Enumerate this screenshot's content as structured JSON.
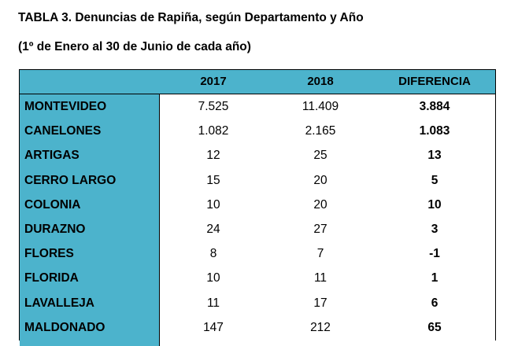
{
  "title": "TABLA 3. Denuncias de Rapiña, según Departamento y Año",
  "subtitle": "(1º de Enero al 30 de Junio de cada año)",
  "colors": {
    "header_bg": "#4cb3cc",
    "border": "#000000"
  },
  "table": {
    "headers": [
      "2017",
      "2018",
      "DIFERENCIA"
    ],
    "rows": [
      {
        "department": "MONTEVIDEO",
        "y2017": "7.525",
        "y2018": "11.409",
        "diff": "3.884"
      },
      {
        "department": "CANELONES",
        "y2017": "1.082",
        "y2018": "2.165",
        "diff": "1.083"
      },
      {
        "department": "ARTIGAS",
        "y2017": "12",
        "y2018": "25",
        "diff": "13"
      },
      {
        "department": "CERRO LARGO",
        "y2017": "15",
        "y2018": "20",
        "diff": "5"
      },
      {
        "department": "COLONIA",
        "y2017": "10",
        "y2018": "20",
        "diff": "10"
      },
      {
        "department": "DURAZNO",
        "y2017": "24",
        "y2018": "27",
        "diff": "3"
      },
      {
        "department": "FLORES",
        "y2017": "8",
        "y2018": "7",
        "diff": "-1"
      },
      {
        "department": "FLORIDA",
        "y2017": "10",
        "y2018": "11",
        "diff": "1"
      },
      {
        "department": "LAVALLEJA",
        "y2017": "11",
        "y2018": "17",
        "diff": "6"
      },
      {
        "department": "MALDONADO",
        "y2017": "147",
        "y2018": "212",
        "diff": "65"
      }
    ]
  }
}
